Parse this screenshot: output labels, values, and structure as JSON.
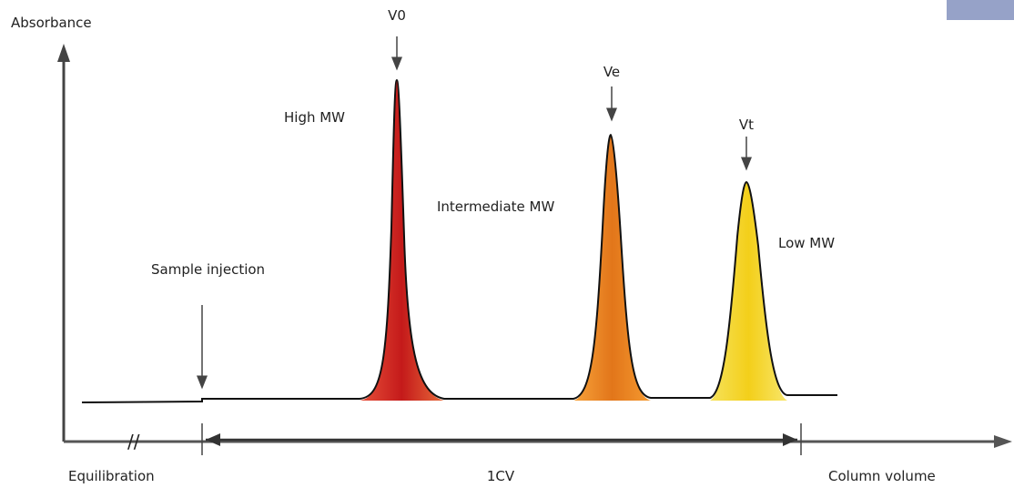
{
  "y_axis_label": "Absorbance",
  "x_axis_label": "Column volume",
  "markers": {
    "void_volume": "V0",
    "elution_volume": "Ve",
    "total_volume": "Vt"
  },
  "peaks": {
    "high": "High MW",
    "intermediate": "Intermediate MW",
    "low": "Low MW"
  },
  "sample_injection": "Sample injection",
  "segments": {
    "equilibration": "Equilibration",
    "one_cv": "1CV"
  }
}
